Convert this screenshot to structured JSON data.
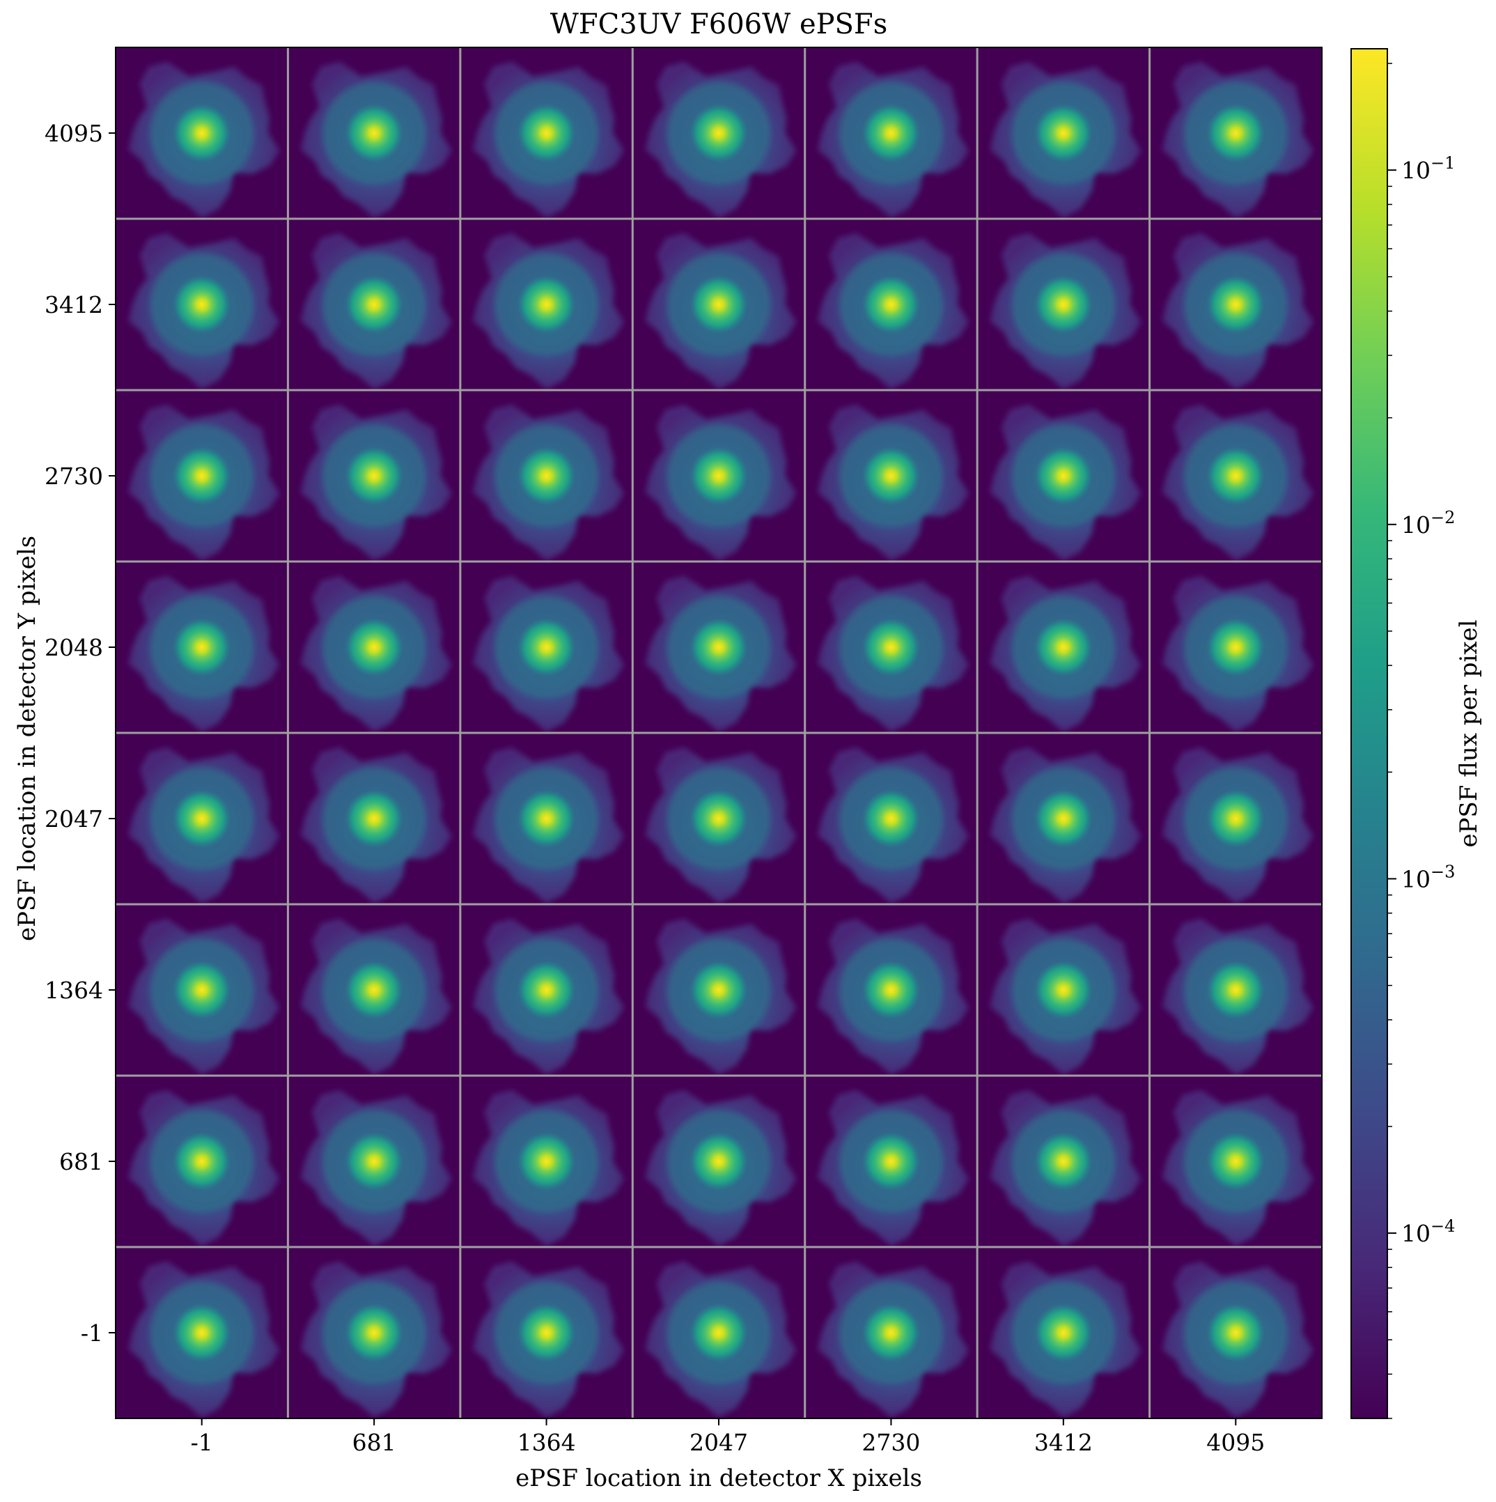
{
  "chart_data": {
    "type": "heatmap",
    "title": "WFC3UV F606W ePSFs",
    "xlabel": "ePSF location in detector X pixels",
    "ylabel": "ePSF location in detector Y pixels",
    "x_ticks": [
      "-1",
      "681",
      "1364",
      "2047",
      "2730",
      "3412",
      "4095"
    ],
    "y_ticks": [
      "4095",
      "3412",
      "2730",
      "2048",
      "2047",
      "1364",
      "681",
      "-1"
    ],
    "grid": "7 columns x 8 rows of ePSF images, separated by grey lines",
    "colorscale": "viridis",
    "colorbar": {
      "label": "ePSF flux per pixel",
      "scale": "log",
      "range": [
        3e-05,
        0.22
      ],
      "tick_values": [
        0.1,
        0.01,
        0.001,
        0.0001
      ],
      "tick_base": "10",
      "tick_exponents": [
        "−1",
        "−2",
        "−3",
        "−4"
      ]
    },
    "colors": {
      "background": "#440154",
      "separator": "#a0a0a0",
      "viridis": [
        "#440154",
        "#482878",
        "#3e4989",
        "#31688e",
        "#26828e",
        "#1f9e89",
        "#35b779",
        "#6ece58",
        "#b5de2b",
        "#fde725"
      ]
    }
  }
}
